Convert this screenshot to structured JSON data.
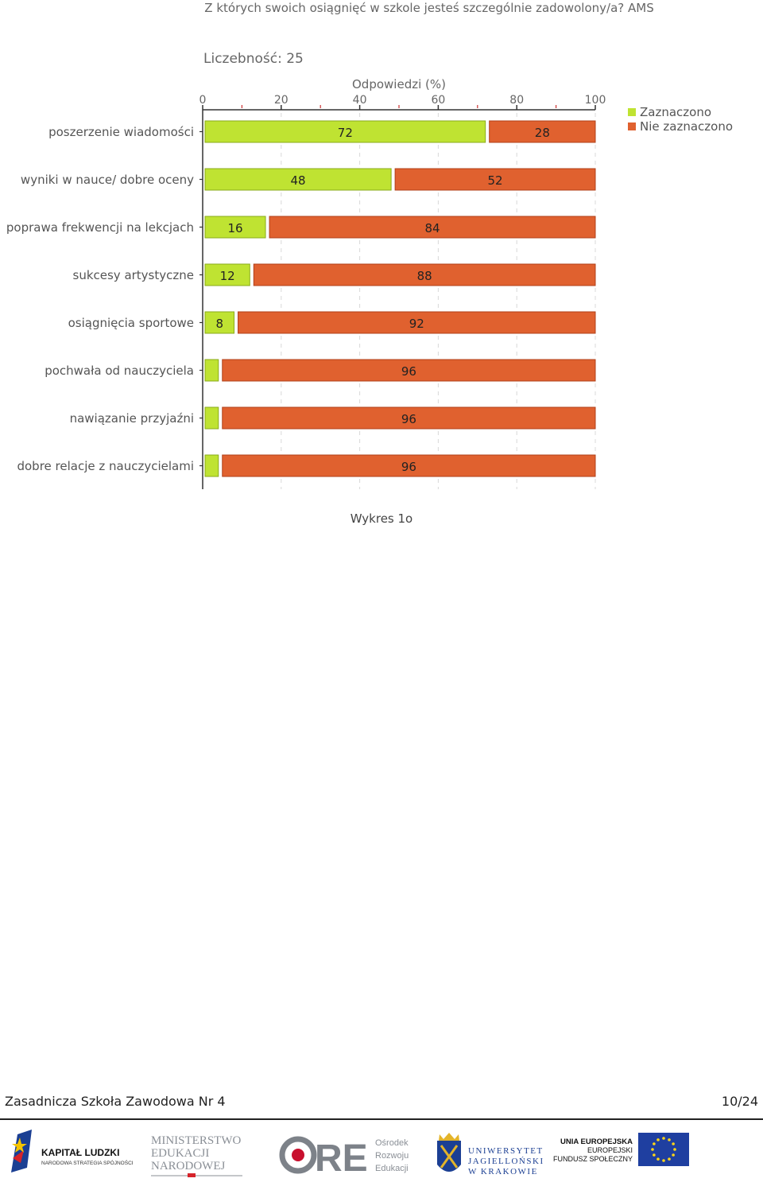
{
  "chart_data": {
    "type": "bar",
    "stacked": true,
    "orientation": "horizontal",
    "title": "Z których swoich osiągnięć w szkole jesteś szczególnie zadowolony/a? AMS",
    "subtitle": "Liczebność: 25",
    "xlabel": "Odpowiedzi (%)",
    "xlim": [
      0,
      100
    ],
    "xticks": [
      "0",
      "20",
      "40",
      "60",
      "80",
      "100"
    ],
    "legend_position": "top-right",
    "categories": [
      "poszerzenie wiadomości",
      "wyniki w nauce/ dobre oceny",
      "poprawa frekwencji na lekcjach",
      "sukcesy artystyczne",
      "osiągnięcia sportowe",
      "pochwała od nauczyciela",
      "nawiązanie przyjaźni",
      "dobre relacje z nauczycielami"
    ],
    "series": [
      {
        "name": "Zaznaczono",
        "color": "#bfe332",
        "values": [
          72,
          48,
          16,
          12,
          8,
          4,
          4,
          4
        ],
        "labels": [
          "72",
          "48",
          "16",
          "12",
          "8",
          "",
          "",
          ""
        ]
      },
      {
        "name": "Nie zaznaczono",
        "color": "#e0612f",
        "values": [
          28,
          52,
          84,
          88,
          92,
          96,
          96,
          96
        ],
        "labels": [
          "28",
          "52",
          "84",
          "88",
          "92",
          "96",
          "96",
          "96"
        ]
      }
    ]
  },
  "caption": "Wykres 1o",
  "footer": {
    "school": "Zasadnicza Szkoła Zawodowa Nr 4",
    "page": "10/24"
  },
  "logos": {
    "kapital": {
      "name": "KAPITAŁ LUDZKI",
      "sub": "NARODOWA STRATEGIA SPÓJNOŚCI"
    },
    "men": {
      "l1": "MINISTERSTWO",
      "l2": "EDUKACJI",
      "l3": "NARODOWEJ"
    },
    "ore": {
      "mark": "RE",
      "l1": "Ośrodek",
      "l2": "Rozwoju",
      "l3": "Edukacji"
    },
    "uj": {
      "l1": "UNIWERSYTET",
      "l2": "JAGIELLOŃSKI",
      "l3": "W KRAKOWIE"
    },
    "ue": {
      "l1": "UNIA EUROPEJSKA",
      "l2": "EUROPEJSKI",
      "l3": "FUNDUSZ SPOŁECZNY"
    }
  }
}
